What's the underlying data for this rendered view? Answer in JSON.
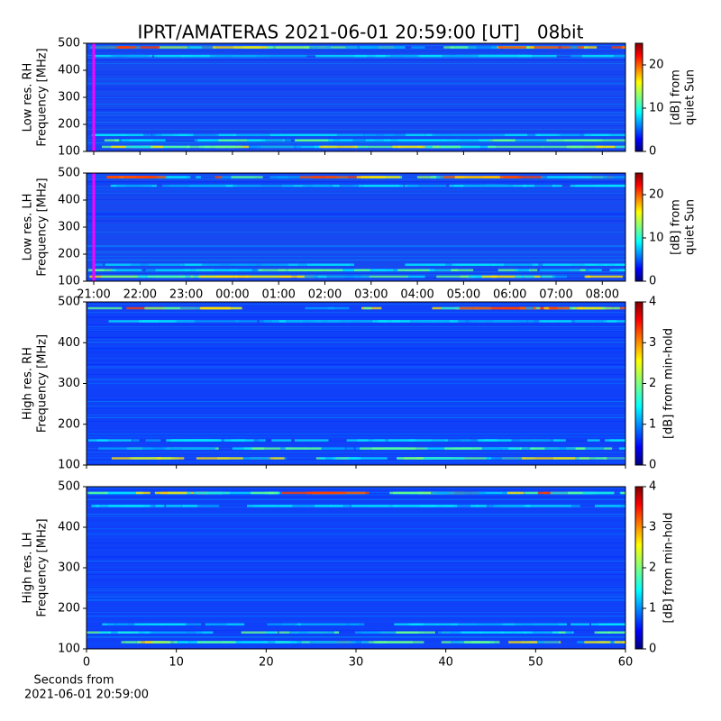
{
  "figure": {
    "title": "IPRT/AMATERAS 2021-06-01 20:59:00 [UT]   08bit",
    "xlabel": [
      "Seconds from",
      "2021-06-01 20:59:00"
    ]
  },
  "chart_data": [
    {
      "type": "heatmap",
      "ylabel": [
        "Low res. RH",
        "Frequency [MHz]"
      ],
      "ylim": [
        100,
        500
      ],
      "yticks": [
        100,
        200,
        300,
        400,
        500
      ],
      "colorbar_label": [
        "[dB] from",
        "quiet Sun"
      ],
      "clim": [
        0,
        25
      ],
      "cticks": [
        0,
        10,
        20
      ]
    },
    {
      "type": "heatmap",
      "ylabel": [
        "Low res. LH",
        "Frequency [MHz]"
      ],
      "ylim": [
        100,
        500
      ],
      "yticks": [
        100,
        200,
        300,
        400,
        500
      ],
      "colorbar_label": [
        "[dB] from",
        "quiet Sun"
      ],
      "clim": [
        0,
        25
      ],
      "cticks": [
        0,
        10,
        20
      ],
      "xtick_labels": [
        "21:00",
        "22:00",
        "23:00",
        "00:00",
        "01:00",
        "02:00",
        "03:00",
        "04:00",
        "05:00",
        "06:00",
        "07:00",
        "08:00"
      ]
    },
    {
      "type": "heatmap",
      "ylabel": [
        "High res. RH",
        "Frequency [MHz]"
      ],
      "ylim": [
        100,
        500
      ],
      "yticks": [
        100,
        200,
        300,
        400,
        500
      ],
      "colorbar_label": [
        "[dB] from min-hold"
      ],
      "clim": [
        0,
        4
      ],
      "cticks": [
        0,
        1,
        2,
        3,
        4
      ],
      "xlim": [
        0,
        60
      ],
      "xticks": [
        0,
        10,
        20,
        30,
        40,
        50,
        60
      ]
    },
    {
      "type": "heatmap",
      "ylabel": [
        "High res. LH",
        "Frequency [MHz]"
      ],
      "ylim": [
        100,
        500
      ],
      "yticks": [
        100,
        200,
        300,
        400,
        500
      ],
      "colorbar_label": [
        "[dB] from min-hold"
      ],
      "clim": [
        0,
        4
      ],
      "cticks": [
        0,
        1,
        2,
        3,
        4
      ],
      "xlim": [
        0,
        60
      ],
      "xticks": [
        0,
        10,
        20,
        30,
        40,
        50,
        60
      ],
      "show_xtick_labels": true
    }
  ]
}
